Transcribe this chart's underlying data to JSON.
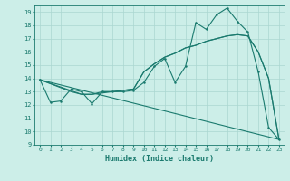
{
  "xlabel": "Humidex (Indice chaleur)",
  "xlim": [
    -0.5,
    23.5
  ],
  "ylim": [
    9,
    19.5
  ],
  "yticks": [
    9,
    10,
    11,
    12,
    13,
    14,
    15,
    16,
    17,
    18,
    19
  ],
  "xticks": [
    0,
    1,
    2,
    3,
    4,
    5,
    6,
    7,
    8,
    9,
    10,
    11,
    12,
    13,
    14,
    15,
    16,
    17,
    18,
    19,
    20,
    21,
    22,
    23
  ],
  "background_color": "#cceee8",
  "grid_color": "#aad6d0",
  "line_color": "#1a7a6e",
  "line1_x": [
    0,
    1,
    2,
    3,
    4,
    5,
    6,
    7,
    8,
    9,
    10,
    11,
    12,
    13,
    14,
    15,
    16,
    17,
    18,
    19,
    20,
    21,
    22,
    23
  ],
  "line1_y": [
    13.9,
    12.2,
    12.3,
    13.2,
    13.0,
    12.1,
    13.0,
    13.0,
    13.0,
    13.1,
    13.7,
    14.9,
    15.5,
    13.7,
    14.9,
    18.2,
    17.7,
    18.8,
    19.3,
    18.3,
    17.5,
    14.5,
    10.3,
    9.4
  ],
  "line2_x": [
    0,
    3,
    4,
    5,
    6,
    7,
    8,
    9,
    10,
    11,
    12,
    13,
    14,
    15,
    16,
    17,
    18,
    19,
    20,
    21,
    22,
    23
  ],
  "line2_y": [
    13.9,
    13.0,
    12.8,
    12.8,
    13.0,
    13.0,
    13.1,
    13.2,
    14.5,
    15.1,
    15.6,
    15.9,
    16.3,
    16.5,
    16.8,
    17.0,
    17.2,
    17.3,
    17.2,
    16.0,
    14.0,
    9.4
  ],
  "line3_x": [
    0,
    4,
    5,
    9,
    10,
    11,
    12,
    13,
    14,
    15,
    16,
    17,
    18,
    19,
    20,
    21,
    22,
    23
  ],
  "line3_y": [
    13.9,
    12.8,
    12.8,
    13.2,
    14.5,
    15.1,
    15.6,
    15.9,
    16.3,
    16.5,
    16.8,
    17.0,
    17.2,
    17.3,
    17.2,
    16.0,
    14.0,
    9.4
  ],
  "line4_x": [
    0,
    23
  ],
  "line4_y": [
    13.9,
    9.4
  ],
  "figsize": [
    3.2,
    2.0
  ],
  "dpi": 100
}
